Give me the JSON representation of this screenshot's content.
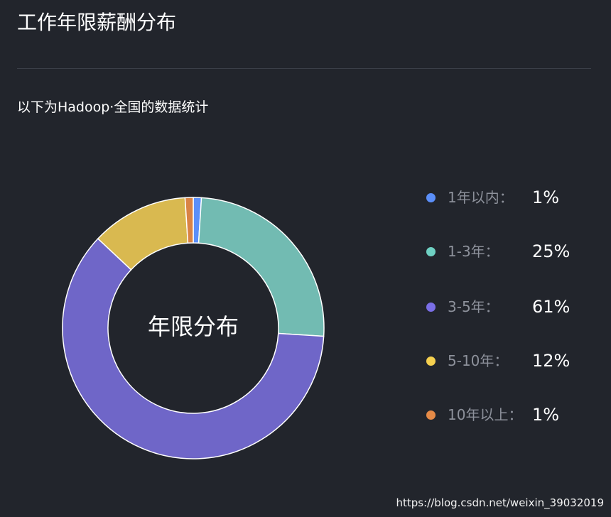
{
  "header": {
    "title": "工作年限薪酬分布"
  },
  "subtitle": "以下为Hadoop·全国的数据统计",
  "chart_data": {
    "type": "pie",
    "center_label": "年限分布",
    "categories": [
      "1年以内：",
      "1-3年：",
      "3-5年：",
      "5-10年：",
      "10年以上："
    ],
    "values": [
      1,
      25,
      61,
      12,
      1
    ],
    "value_labels": [
      "1%",
      "25%",
      "61%",
      "12%",
      "1%"
    ],
    "colors": [
      "#5b8ff9",
      "#72bbb2",
      "#6f66c8",
      "#d9b950",
      "#d98345"
    ],
    "legend_colors": [
      "#5b8ff9",
      "#6fd1c3",
      "#7a6ee6",
      "#f5d04f",
      "#e58a47"
    ],
    "legend_position": "right"
  },
  "watermark": "https://blog.csdn.net/weixin_39032019"
}
